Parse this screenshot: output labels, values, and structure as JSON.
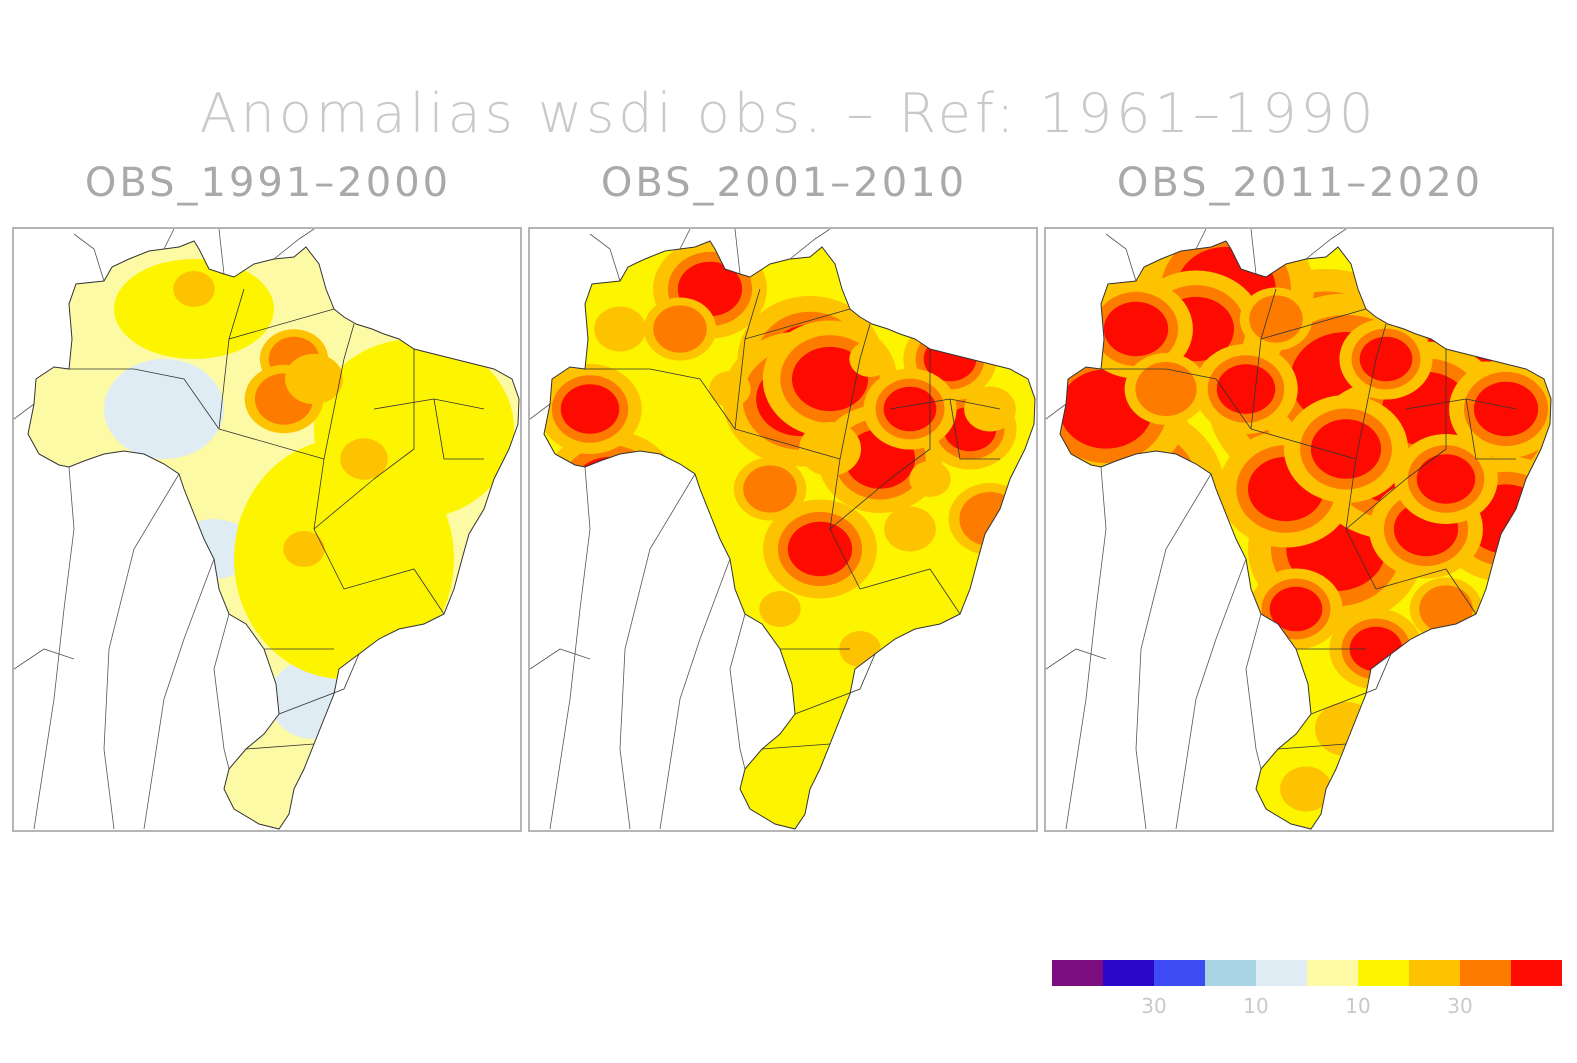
{
  "title": "Anomalias wsdi obs. – Ref: 1961–1990",
  "panels": [
    {
      "title": "OBS_1991–2000",
      "intensity": 0.18
    },
    {
      "title": "OBS_2001–2010",
      "intensity": 0.55
    },
    {
      "title": "OBS_2011–2020",
      "intensity": 0.85
    }
  ],
  "colorbar": {
    "colors": [
      "#7b0d7e",
      "#2a08c9",
      "#3c4cf2",
      "#a9d4e3",
      "#e0ecf3",
      "#fdfaa6",
      "#fdf400",
      "#fdc200",
      "#fd7c00",
      "#fd0a00"
    ],
    "labels": [
      "30",
      "10",
      "10",
      "30"
    ]
  }
}
